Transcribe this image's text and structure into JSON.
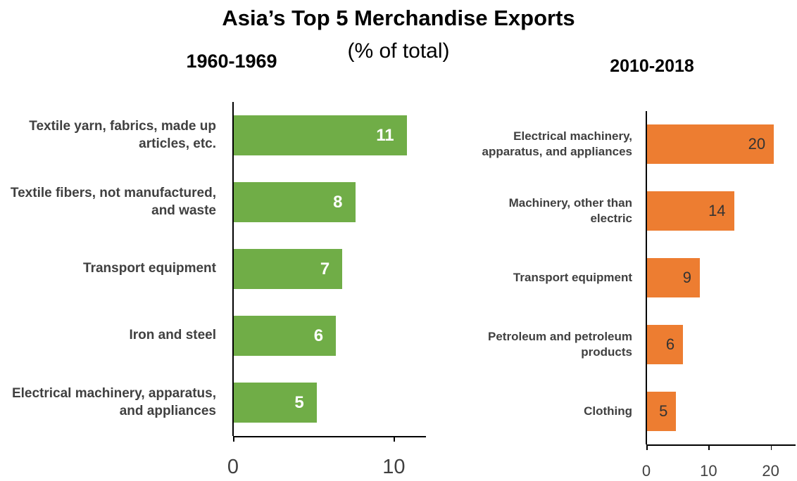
{
  "title": "Asia’s Top 5 Merchandise  Exports",
  "subtitle": "(% of total)",
  "chart_data": [
    {
      "type": "bar",
      "orientation": "horizontal",
      "title": "1960-1969",
      "categories": [
        "Textile yarn, fabrics, made up articles, etc.",
        "Textile fibers, not manufactured, and waste",
        "Transport equipment",
        "Iron and steel",
        "Electrical machinery, apparatus, and appliances"
      ],
      "values": [
        10.8,
        7.6,
        6.8,
        6.4,
        5.2
      ],
      "value_labels": [
        "11",
        "8",
        "7",
        "6",
        "5"
      ],
      "color": "#70ad47",
      "xlim": [
        0,
        12
      ],
      "xticks": [
        0,
        10
      ]
    },
    {
      "type": "bar",
      "orientation": "horizontal",
      "title": "2010-2018",
      "categories": [
        "Electrical machinery, apparatus, and appliances",
        "Machinery, other than electric",
        "Transport equipment",
        "Petroleum and petroleum products",
        "Clothing"
      ],
      "values": [
        20.5,
        14.1,
        8.6,
        5.9,
        4.8
      ],
      "value_labels": [
        "20",
        "14",
        "9",
        "6",
        "5"
      ],
      "color": "#ed7d31",
      "xlim": [
        0,
        24
      ],
      "xticks": [
        0,
        10,
        20
      ]
    }
  ]
}
